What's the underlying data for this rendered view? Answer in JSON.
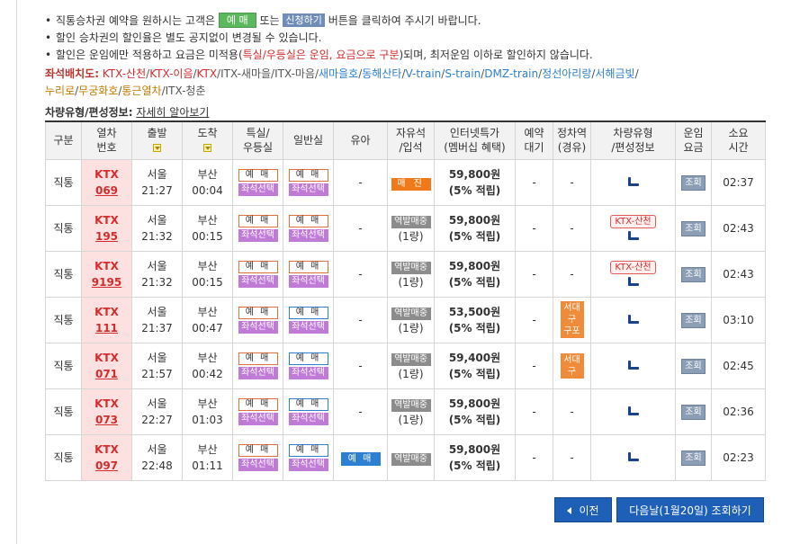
{
  "notices": {
    "line1": {
      "pre": "직통승차권 예약을 원하시는 고객은",
      "btn1": "예 매",
      "mid": "또는",
      "btn2": "신청하기",
      "post": "버튼을 클릭하여 주시기 바랍니다."
    },
    "line2": "할인 승차권의 할인율은 별도 공지없이 변경될 수 있습니다.",
    "line3": {
      "pre": "할인은 운임에만 적용하고 요금은 미적용(",
      "em": "특실/우등실은 운임, 요금으로 구분",
      "post": ")되며, 최저운임 이하로 할인하지 않습니다."
    }
  },
  "seat_layout": {
    "label": "좌석배치도:",
    "items": [
      {
        "text": "KTX-산천",
        "color": "#d32c2c"
      },
      {
        "text": "KTX-이음",
        "color": "#d32c2c"
      },
      {
        "text": "KTX",
        "color": "#d32c2c"
      },
      {
        "text": "ITX-새마을",
        "color": "#555555"
      },
      {
        "text": "ITX-마음",
        "color": "#555555"
      },
      {
        "text": "새마을호",
        "color": "#2d7fd1"
      },
      {
        "text": "동해산타",
        "color": "#2d7fd1"
      },
      {
        "text": "V-train",
        "color": "#2d7fd1"
      },
      {
        "text": "S-train",
        "color": "#2d7fd1"
      },
      {
        "text": "DMZ-train",
        "color": "#2d7fd1"
      },
      {
        "text": "정선아리랑",
        "color": "#2d7fd1"
      },
      {
        "text": "서해금빛",
        "color": "#2d7fd1"
      },
      {
        "text": "누리로",
        "color": "#c07a00"
      },
      {
        "text": "무궁화호",
        "color": "#c07a00"
      },
      {
        "text": "통근열차",
        "color": "#c07a00"
      },
      {
        "text": "ITX-청춘",
        "color": "#555555"
      }
    ]
  },
  "car_type": {
    "label": "차량유형/편성정보:",
    "link": "자세히 알아보기"
  },
  "headers": {
    "type": "구분",
    "train_no_1": "열차",
    "train_no_2": "번호",
    "depart": "출발",
    "arrive": "도착",
    "special_1": "특실/",
    "special_2": "우등실",
    "general": "일반실",
    "infant": "유아",
    "free_1": "자유석",
    "free_2": "/입석",
    "internet_1": "인터넷특가",
    "internet_2": "(멤버십 혜택)",
    "wait_1": "예약",
    "wait_2": "대기",
    "stop_1": "정차역",
    "stop_2": "(경유)",
    "car_1": "차량유형",
    "car_2": "/편성정보",
    "fare_1": "운임",
    "fare_2": "요금",
    "time_1": "소요",
    "time_2": "시간"
  },
  "labels": {
    "reserve": "예 매",
    "seat_select": "좌석선택",
    "standing": "역발매중",
    "car_count": "(1량)",
    "soldout": "매 진",
    "dash": "-",
    "inquiry": "조회"
  },
  "rows": [
    {
      "type": "직통",
      "train": "KTX",
      "no": "069",
      "dep_st": "서울",
      "dep_time": "21:27",
      "arr_st": "부산",
      "arr_time": "00:04",
      "price": "59,800원",
      "points": "(5% 적립)",
      "free": "soldout",
      "stop": "",
      "car_tag": "",
      "duration": "02:37",
      "general_style": "orange"
    },
    {
      "type": "직통",
      "train": "KTX",
      "no": "195",
      "dep_st": "서울",
      "dep_time": "21:32",
      "arr_st": "부산",
      "arr_time": "00:15",
      "price": "59,800원",
      "points": "(5% 적립)",
      "free": "standing",
      "stop": "",
      "car_tag": "KTX-산천",
      "duration": "02:43",
      "general_style": "orange"
    },
    {
      "type": "직통",
      "train": "KTX",
      "no": "9195",
      "dep_st": "서울",
      "dep_time": "21:32",
      "arr_st": "부산",
      "arr_time": "00:15",
      "price": "59,800원",
      "points": "(5% 적립)",
      "free": "standing",
      "stop": "",
      "car_tag": "KTX-산천",
      "duration": "02:43",
      "general_style": "orange"
    },
    {
      "type": "직통",
      "train": "KTX",
      "no": "111",
      "dep_st": "서울",
      "dep_time": "21:37",
      "arr_st": "부산",
      "arr_time": "00:47",
      "price": "53,500원",
      "points": "(5% 적립)",
      "free": "standing",
      "stop": "서대구 구포",
      "car_tag": "",
      "duration": "03:10",
      "general_style": "blue"
    },
    {
      "type": "직통",
      "train": "KTX",
      "no": "071",
      "dep_st": "서울",
      "dep_time": "21:57",
      "arr_st": "부산",
      "arr_time": "00:42",
      "price": "59,400원",
      "points": "(5% 적립)",
      "free": "standing",
      "stop": "서대구",
      "car_tag": "",
      "duration": "02:45",
      "general_style": "blue"
    },
    {
      "type": "직통",
      "train": "KTX",
      "no": "073",
      "dep_st": "서울",
      "dep_time": "22:27",
      "arr_st": "부산",
      "arr_time": "01:03",
      "price": "59,800원",
      "points": "(5% 적립)",
      "free": "standing",
      "stop": "",
      "car_tag": "",
      "duration": "02:36",
      "general_style": "blue"
    },
    {
      "type": "직통",
      "train": "KTX",
      "no": "097",
      "dep_st": "서울",
      "dep_time": "22:48",
      "arr_st": "부산",
      "arr_time": "01:11",
      "price": "59,800원",
      "points": "(5% 적립)",
      "free": "standing_nocount",
      "stop": "",
      "car_tag": "",
      "duration": "02:23",
      "general_style": "blue",
      "infant_reserve": true
    }
  ],
  "nav": {
    "prev": "이전",
    "next": "다음날(1월20일) 조회하기"
  }
}
